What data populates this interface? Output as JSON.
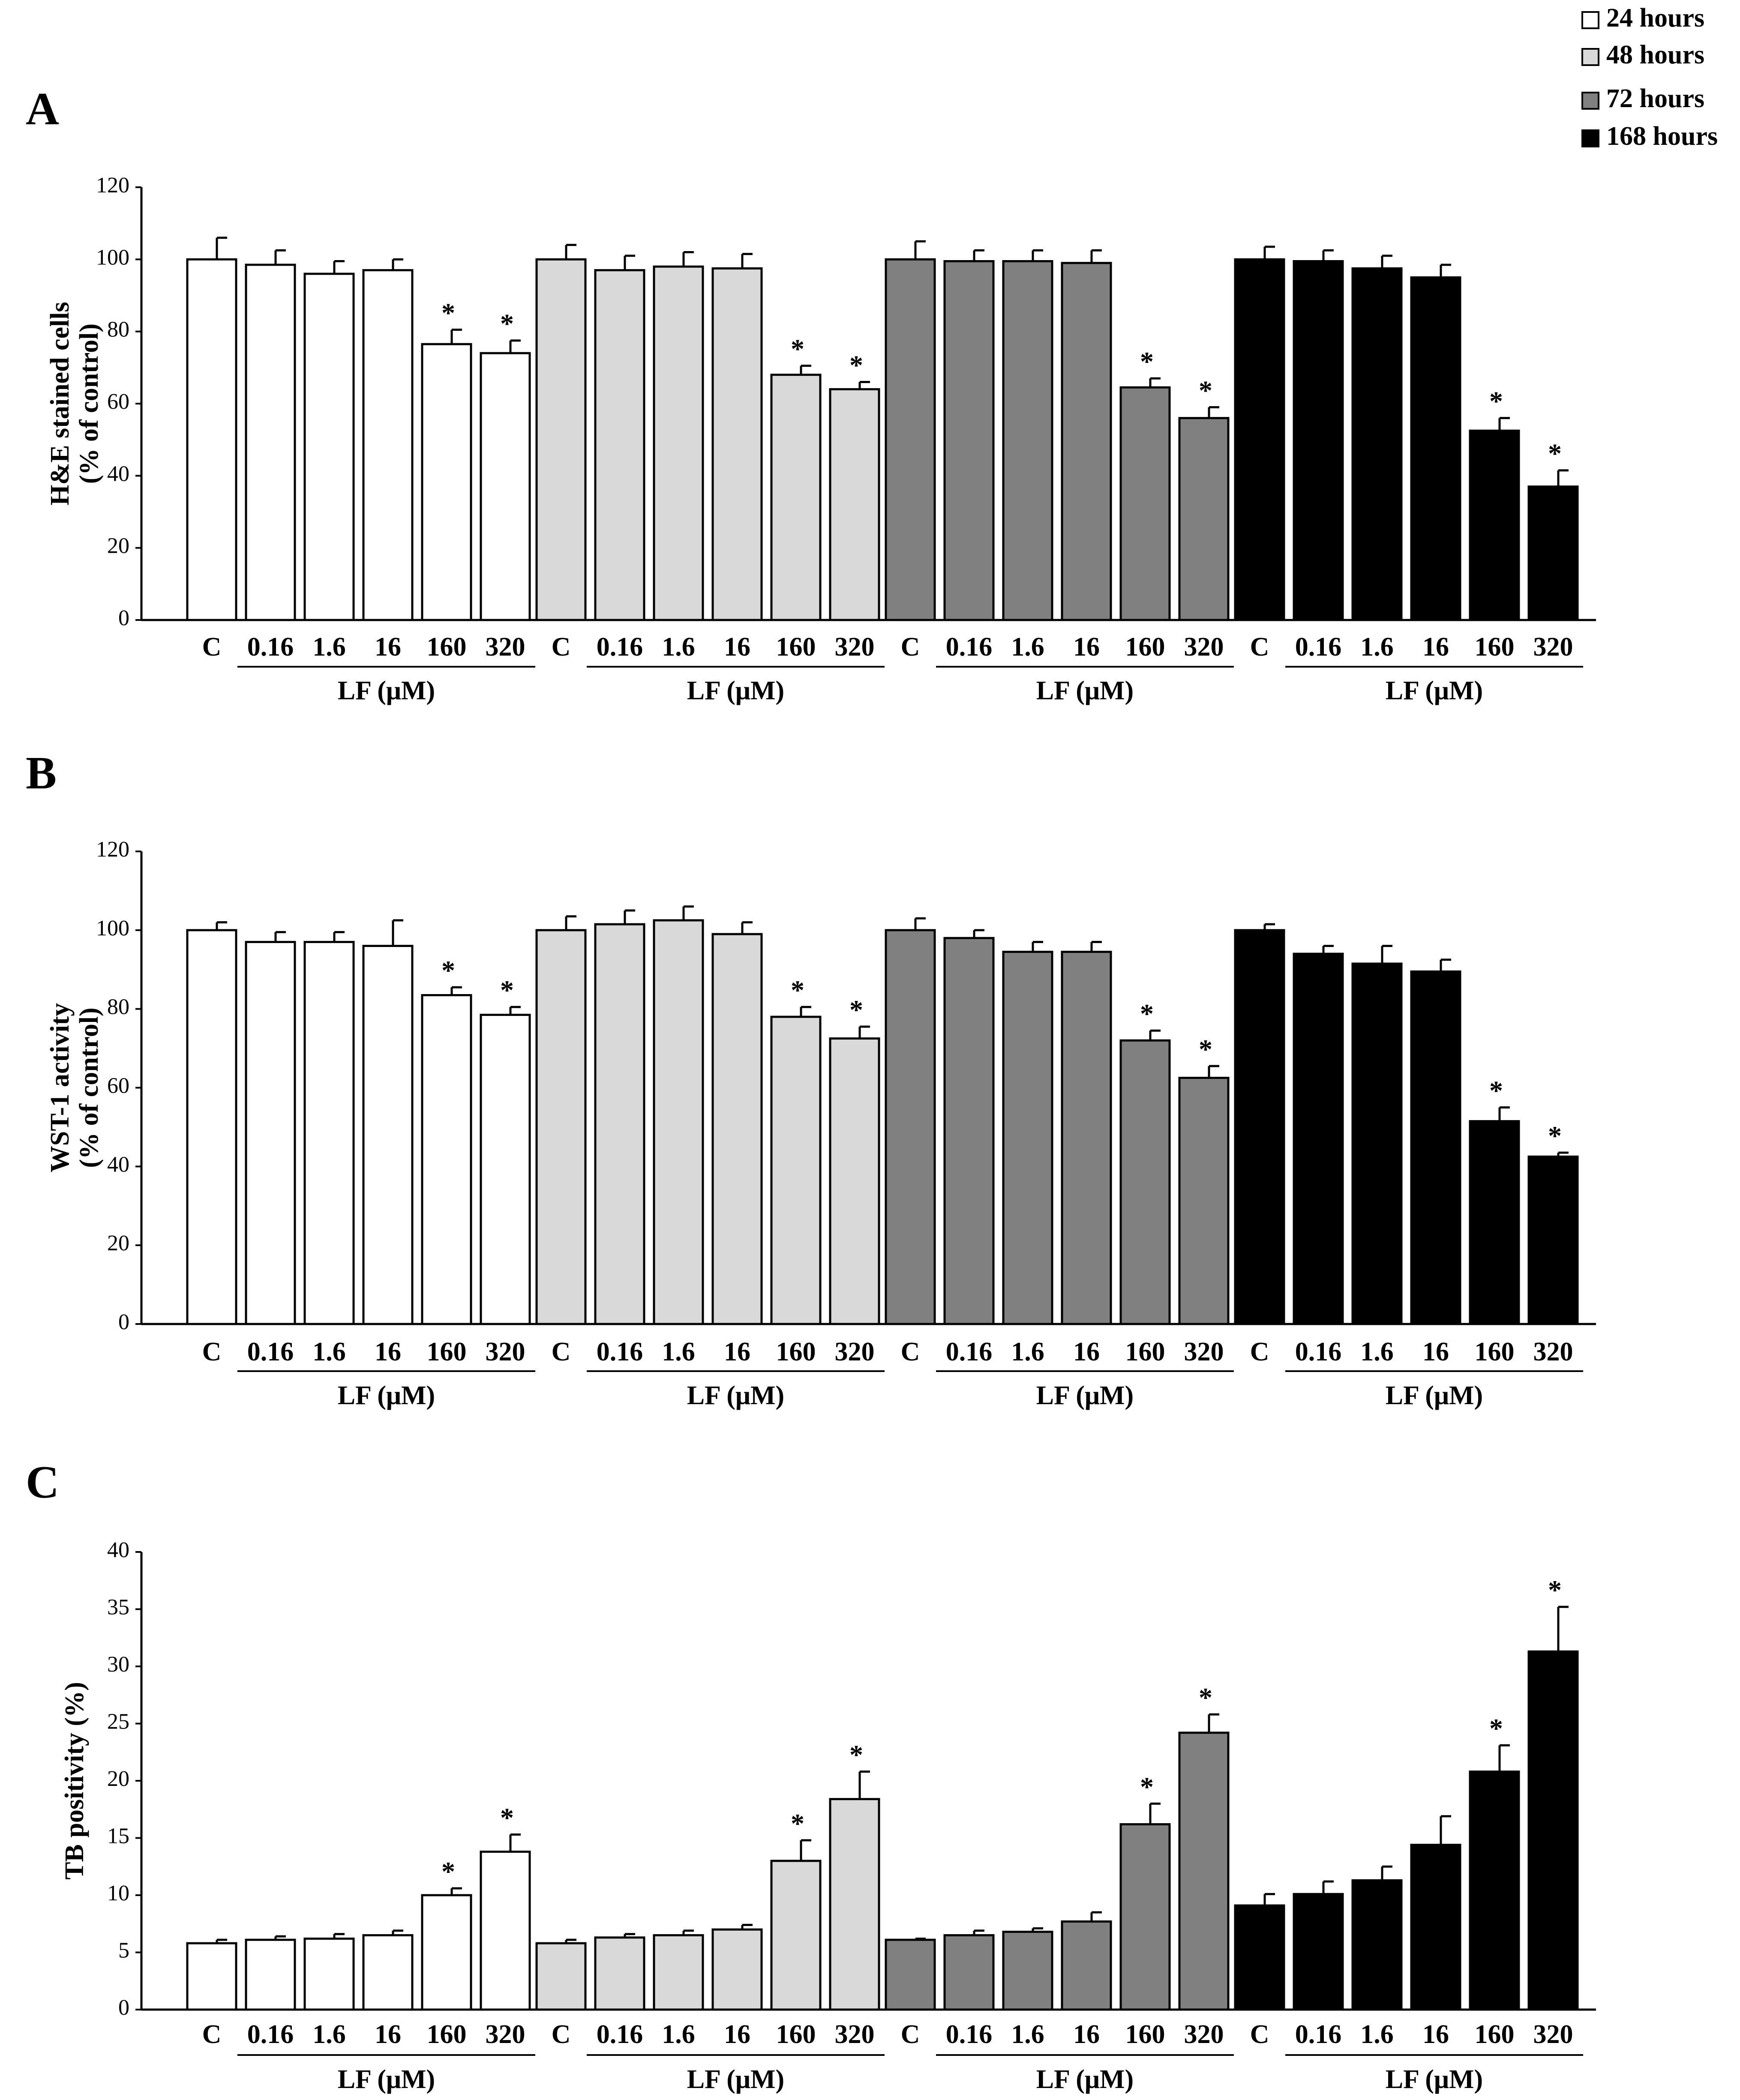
{
  "legend": {
    "items": [
      {
        "label": "24 hours",
        "color": "#ffffff"
      },
      {
        "label": "48 hours",
        "color": "#d9d9d9"
      },
      {
        "label": "72 hours",
        "color": "#808080"
      },
      {
        "label": "168 hours",
        "color": "#000000"
      }
    ]
  },
  "chart_data": [
    {
      "panel": "A",
      "type": "bar",
      "ylabel": [
        "H&E stained cells",
        "(% of control)"
      ],
      "ylim": [
        0,
        120
      ],
      "ytick_values": [
        0,
        20,
        40,
        60,
        80,
        100,
        120
      ],
      "ytick_labels": [
        "0",
        "20",
        "40",
        "60",
        "80",
        "100",
        "120"
      ],
      "categories": [
        "C",
        "0.16",
        "1.6",
        "16",
        "160",
        "320"
      ],
      "group_label": "LF (μM)",
      "series": [
        {
          "name": "24 hours",
          "values": [
            100,
            98.5,
            96,
            97,
            76.5,
            74
          ],
          "errors": [
            6,
            4,
            3.5,
            3,
            4,
            3.5
          ],
          "significant": [
            false,
            false,
            false,
            false,
            true,
            true
          ]
        },
        {
          "name": "48 hours",
          "values": [
            100,
            97,
            98,
            97.5,
            68,
            64
          ],
          "errors": [
            4,
            4,
            4,
            4,
            2.5,
            2
          ],
          "significant": [
            false,
            false,
            false,
            false,
            true,
            true
          ]
        },
        {
          "name": "72 hours",
          "values": [
            100,
            99.5,
            99.5,
            99,
            64.5,
            56
          ],
          "errors": [
            5,
            3,
            3,
            3.5,
            2.5,
            3
          ],
          "significant": [
            false,
            false,
            false,
            false,
            true,
            true
          ]
        },
        {
          "name": "168 hours",
          "values": [
            100,
            99.5,
            97.5,
            95,
            52.5,
            37
          ],
          "errors": [
            3.5,
            3,
            3.5,
            3.5,
            3.5,
            4.5
          ],
          "significant": [
            false,
            false,
            false,
            false,
            true,
            true
          ]
        }
      ]
    },
    {
      "panel": "B",
      "type": "bar",
      "ylabel": [
        "WST-1 activity",
        "(% of control)"
      ],
      "ylim": [
        0,
        120
      ],
      "ytick_values": [
        0,
        20,
        40,
        60,
        80,
        100,
        120
      ],
      "ytick_labels": [
        "0",
        "20",
        "40",
        "60",
        "80",
        "100",
        "120"
      ],
      "categories": [
        "C",
        "0.16",
        "1.6",
        "16",
        "160",
        "320"
      ],
      "group_label": "LF (μM)",
      "series": [
        {
          "name": "24 hours",
          "values": [
            100,
            97,
            97,
            96,
            83.5,
            78.5
          ],
          "errors": [
            2,
            2.5,
            2.5,
            6.5,
            2,
            2
          ],
          "significant": [
            false,
            false,
            false,
            false,
            true,
            true
          ]
        },
        {
          "name": "48 hours",
          "values": [
            100,
            101.5,
            102.5,
            99,
            78,
            72.5
          ],
          "errors": [
            3.5,
            3.5,
            3.5,
            3,
            2.5,
            3
          ],
          "significant": [
            false,
            false,
            false,
            false,
            true,
            true
          ]
        },
        {
          "name": "72 hours",
          "values": [
            100,
            98,
            94.5,
            94.5,
            72,
            62.5
          ],
          "errors": [
            3,
            2,
            2.5,
            2.5,
            2.5,
            3
          ],
          "significant": [
            false,
            false,
            false,
            false,
            true,
            true
          ]
        },
        {
          "name": "168 hours",
          "values": [
            100,
            94,
            91.5,
            89.5,
            51.5,
            42.5
          ],
          "errors": [
            1.5,
            2,
            4.5,
            3,
            3.5,
            1
          ],
          "significant": [
            false,
            false,
            false,
            false,
            true,
            true
          ]
        }
      ]
    },
    {
      "panel": "C",
      "type": "bar",
      "ylabel": [
        "TB positivity (%)"
      ],
      "ylim": [
        0,
        40
      ],
      "ytick_values": [
        0,
        5,
        10,
        15,
        20,
        25,
        30,
        35,
        40
      ],
      "ytick_labels": [
        "0",
        "5",
        "10",
        "15",
        "20",
        "25",
        "30",
        "35",
        "40"
      ],
      "categories": [
        "C",
        "0.16",
        "1.6",
        "16",
        "160",
        "320"
      ],
      "group_label": "LF (μM)",
      "series": [
        {
          "name": "24 hours",
          "values": [
            5.8,
            6.1,
            6.2,
            6.5,
            10,
            13.8
          ],
          "errors": [
            0.3,
            0.3,
            0.4,
            0.4,
            0.6,
            1.5
          ],
          "significant": [
            false,
            false,
            false,
            false,
            true,
            true
          ]
        },
        {
          "name": "48 hours",
          "values": [
            5.8,
            6.3,
            6.5,
            7.0,
            13,
            18.4
          ],
          "errors": [
            0.3,
            0.3,
            0.4,
            0.4,
            1.8,
            2.4
          ],
          "significant": [
            false,
            false,
            false,
            false,
            true,
            true
          ]
        },
        {
          "name": "72 hours",
          "values": [
            6.1,
            6.5,
            6.8,
            7.7,
            16.2,
            24.2
          ],
          "errors": [
            0.1,
            0.4,
            0.3,
            0.8,
            1.8,
            1.6
          ],
          "significant": [
            false,
            false,
            false,
            false,
            true,
            true
          ]
        },
        {
          "name": "168 hours",
          "values": [
            9.1,
            10.1,
            11.3,
            14.4,
            20.8,
            31.3
          ],
          "errors": [
            1,
            1.1,
            1.2,
            2.5,
            2.3,
            3.9
          ],
          "significant": [
            false,
            false,
            false,
            false,
            true,
            true
          ]
        }
      ]
    }
  ]
}
